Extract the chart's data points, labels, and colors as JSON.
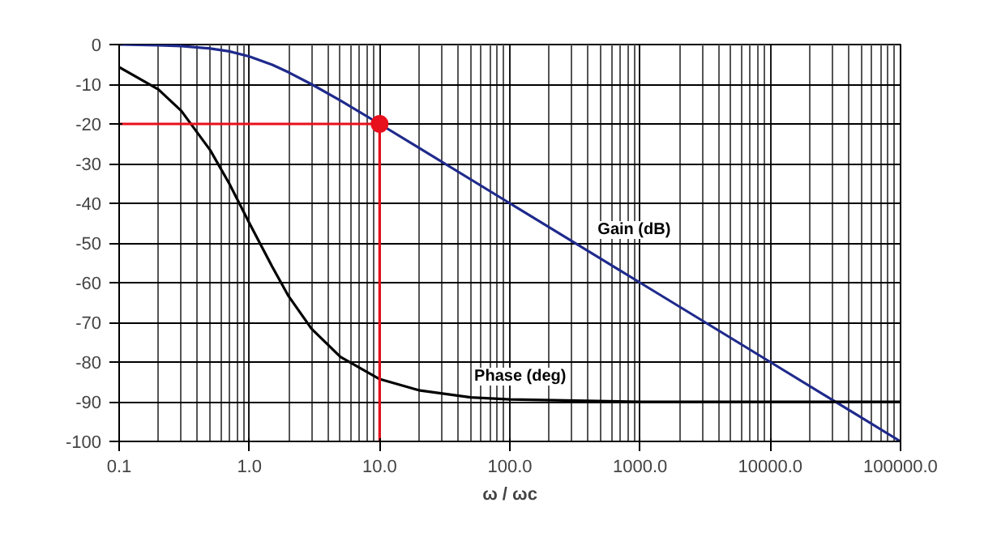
{
  "chart_data": {
    "type": "line",
    "xlabel": "ω / ωc",
    "log": "x",
    "grid": true,
    "marker": "none",
    "line_style": "solid",
    "xlim": [
      0.1,
      100000
    ],
    "xticks": [
      {
        "value": 0.1,
        "label": "0.1"
      },
      {
        "value": 1,
        "label": "1.0"
      },
      {
        "value": 10,
        "label": "10.0"
      },
      {
        "value": 100,
        "label": "100.0"
      },
      {
        "value": 1000,
        "label": "1000.0"
      },
      {
        "value": 10000,
        "label": "10000.0"
      },
      {
        "value": 100000,
        "label": "100000.0"
      }
    ],
    "ylim": [
      -100,
      0
    ],
    "yticks": [
      -100,
      -90,
      -80,
      -70,
      -60,
      -50,
      -40,
      -30,
      -20,
      -10,
      0
    ],
    "series": [
      {
        "name": "Gain (dB)",
        "color": "#1f2a8c",
        "x": [
          0.1,
          0.2,
          0.3,
          0.5,
          0.7,
          1,
          1.5,
          2,
          3,
          5,
          10,
          100,
          1000,
          10000,
          100000
        ],
        "values": [
          0,
          -0.2,
          -0.4,
          -1,
          -1.7,
          -3,
          -5.1,
          -7,
          -10,
          -14.1,
          -20,
          -40,
          -60,
          -80,
          -100
        ]
      },
      {
        "name": "Phase  (deg)",
        "color": "#000000",
        "x": [
          0.1,
          0.2,
          0.3,
          0.5,
          0.7,
          1,
          1.5,
          2,
          3,
          5,
          10,
          20,
          50,
          100,
          1000,
          100000
        ],
        "values": [
          -5.7,
          -11.3,
          -16.7,
          -26.6,
          -35,
          -45,
          -56,
          -63.4,
          -71.6,
          -78.7,
          -84.3,
          -87.1,
          -88.9,
          -89.4,
          -90,
          -90
        ]
      },
      {
        "type": "line",
        "color": "#e8101c",
        "x": [
          0.1,
          10,
          10
        ],
        "values": [
          -20,
          -20,
          -100
        ]
      },
      {
        "type": "scatter",
        "marker": "circle",
        "color": "#e8101c",
        "x": [
          10
        ],
        "values": [
          -20
        ]
      }
    ]
  }
}
